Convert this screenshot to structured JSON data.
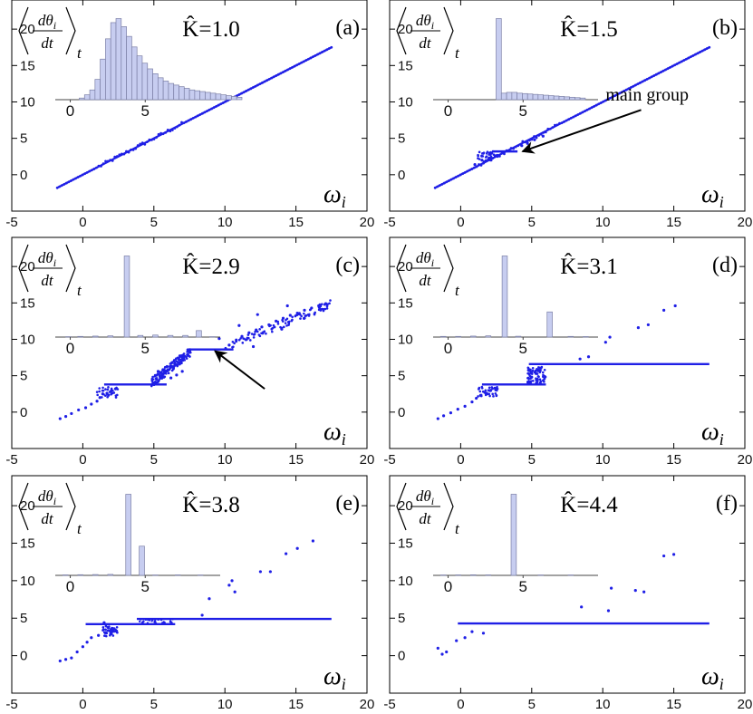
{
  "figure": {
    "y_label": {
      "numerator": "dθ",
      "numerator_sub": "i",
      "denominator": "dt",
      "subscript": "t"
    },
    "x_label": {
      "symbol": "ω",
      "sub": "i"
    }
  },
  "chart_data": [
    {
      "type": "scatter",
      "panel": "(a)",
      "k_label": "K̂=1.0",
      "xlim": [
        -5,
        20
      ],
      "ylim": [
        -5,
        24
      ],
      "xticks": [
        -5,
        0,
        5,
        10,
        15,
        20
      ],
      "yticks": [
        0,
        5,
        10,
        15,
        20
      ],
      "main_line": {
        "x_start": -1.8,
        "x_end": 17.5,
        "equation": "y = x"
      },
      "plateaus": [],
      "scatter_points": [],
      "inset": {
        "type": "bar",
        "xticks": [
          0,
          5
        ],
        "xlim": [
          -1,
          10
        ],
        "bins_start": 0.6,
        "bin_width": 0.35,
        "values": [
          0.2,
          0.6,
          1.2,
          2.5,
          5,
          7.5,
          9.5,
          10,
          9,
          7.8,
          6.5,
          5.4,
          4.5,
          3.8,
          3.2,
          2.7,
          2.3,
          2,
          1.8,
          1.6,
          1.4,
          1.2,
          1.1,
          1,
          0.9,
          0.8,
          0.7,
          0.6,
          0.5,
          0.4,
          0.3
        ],
        "ymax": 10.5
      }
    },
    {
      "type": "scatter",
      "panel": "(b)",
      "k_label": "K̂=1.5",
      "xlim": [
        -5,
        20
      ],
      "ylim": [
        -5,
        24
      ],
      "xticks": [
        -5,
        0,
        5,
        10,
        15,
        20
      ],
      "yticks": [
        0,
        5,
        10,
        15,
        20
      ],
      "main_line": {
        "x_start": -1.8,
        "x_end": 17.5,
        "equation": "y = x"
      },
      "plateaus": [
        {
          "x_start": 2.2,
          "x_end": 4.0,
          "y": 3.2
        }
      ],
      "scatter_points": [
        [
          1.0,
          1.4
        ],
        [
          1.5,
          2.0
        ],
        [
          2.0,
          2.3
        ],
        [
          4.3,
          4.0
        ],
        [
          4.7,
          4.3
        ],
        [
          5.2,
          4.8
        ],
        [
          5.8,
          5.3
        ]
      ],
      "annotation": {
        "text": "main group",
        "text_x": 10.2,
        "text_y": 10.2,
        "arrow_to": [
          4.1,
          3.2
        ]
      },
      "inset": {
        "type": "bar",
        "xticks": [
          0,
          5
        ],
        "xlim": [
          -1,
          10
        ],
        "bins_start": 3.2,
        "bin_width": 0.35,
        "values": [
          10,
          0.8,
          0.9,
          0.9,
          0.8,
          0.75,
          0.7,
          0.65,
          0.6,
          0.55,
          0.5,
          0.45,
          0.4,
          0.35,
          0.3,
          0.25,
          0.2
        ],
        "ymax": 10.5
      }
    },
    {
      "type": "scatter",
      "panel": "(c)",
      "k_label": "K̂=2.9",
      "xlim": [
        -5,
        20
      ],
      "ylim": [
        -5,
        24
      ],
      "xticks": [
        -5,
        0,
        5,
        10,
        15,
        20
      ],
      "yticks": [
        0,
        5,
        10,
        15,
        20
      ],
      "main_line": null,
      "plateaus": [
        {
          "x_start": 1.5,
          "x_end": 5.9,
          "y": 3.8
        },
        {
          "x_start": 7.5,
          "x_end": 10.6,
          "y": 8.6
        }
      ],
      "scatter_points": [
        [
          -1.6,
          -0.9
        ],
        [
          -1.2,
          -0.6
        ],
        [
          -0.8,
          -0.2
        ],
        [
          -0.3,
          0.3
        ],
        [
          0.2,
          0.6
        ],
        [
          0.6,
          1.1
        ],
        [
          1.0,
          1.5
        ],
        [
          1.2,
          2.0
        ],
        [
          1.4,
          2.5
        ],
        [
          1.7,
          2.6
        ],
        [
          2.0,
          2.9
        ],
        [
          2.3,
          3.2
        ],
        [
          5.2,
          4.5
        ],
        [
          5.5,
          5.0
        ],
        [
          5.8,
          5.4
        ],
        [
          6.0,
          5.8
        ],
        [
          6.3,
          6.2
        ],
        [
          6.6,
          6.5
        ],
        [
          6.9,
          6.9
        ],
        [
          7.1,
          7.4
        ],
        [
          7.4,
          7.8
        ],
        [
          6.2,
          4.7
        ],
        [
          6.6,
          5.1
        ],
        [
          7.0,
          5.6
        ],
        [
          5.3,
          5.6
        ],
        [
          10.3,
          9.2
        ],
        [
          10.8,
          9.9
        ],
        [
          11.2,
          10.4
        ],
        [
          11.7,
          10.9
        ],
        [
          12.2,
          11.3
        ],
        [
          12.6,
          11.7
        ],
        [
          13.1,
          12.0
        ],
        [
          13.6,
          12.5
        ],
        [
          14.1,
          12.9
        ],
        [
          14.6,
          13.3
        ],
        [
          15.1,
          13.6
        ],
        [
          15.6,
          14.0
        ],
        [
          16.1,
          14.3
        ],
        [
          16.6,
          14.6
        ],
        [
          17.1,
          14.9
        ],
        [
          9.6,
          10.1
        ],
        [
          12.3,
          13.4
        ],
        [
          14.4,
          14.6
        ],
        [
          11.0,
          11.9
        ],
        [
          12.0,
          9.0
        ],
        [
          14.0,
          11.4
        ]
      ],
      "annotation": {
        "text": "",
        "arrow_from": [
          12.8,
          3.2
        ],
        "arrow_to": [
          9.3,
          8.4
        ]
      },
      "inset": {
        "type": "bar",
        "xticks": [
          0,
          5
        ],
        "xlim": [
          -1,
          10
        ],
        "bins": [
          [
            3.6,
            0.35,
            10
          ],
          [
            8.4,
            0.35,
            0.8
          ],
          [
            -0.3,
            0.35,
            0.05
          ],
          [
            0.5,
            0.35,
            0.08
          ],
          [
            1.5,
            0.35,
            0.12
          ],
          [
            2.5,
            0.35,
            0.15
          ],
          [
            4.5,
            0.35,
            0.2
          ],
          [
            5.5,
            0.35,
            0.25
          ],
          [
            6.5,
            0.35,
            0.2
          ],
          [
            7.5,
            0.35,
            0.2
          ],
          [
            9.3,
            0.35,
            0.05
          ]
        ],
        "ymax": 10.5
      }
    },
    {
      "type": "scatter",
      "panel": "(d)",
      "k_label": "K̂=3.1",
      "xlim": [
        -5,
        20
      ],
      "ylim": [
        -5,
        24
      ],
      "xticks": [
        -5,
        0,
        5,
        10,
        15,
        20
      ],
      "yticks": [
        0,
        5,
        10,
        15,
        20
      ],
      "main_line": null,
      "plateaus": [
        {
          "x_start": 1.5,
          "x_end": 6.0,
          "y": 3.8
        },
        {
          "x_start": 4.8,
          "x_end": 17.5,
          "y": 6.6
        }
      ],
      "scatter_points": [
        [
          -1.6,
          -0.9
        ],
        [
          -1.2,
          -0.5
        ],
        [
          -0.7,
          -0.1
        ],
        [
          -0.2,
          0.4
        ],
        [
          0.3,
          0.8
        ],
        [
          0.8,
          1.4
        ],
        [
          1.1,
          1.9
        ],
        [
          1.4,
          2.3
        ],
        [
          1.7,
          2.7
        ],
        [
          2.1,
          3.0
        ],
        [
          2.4,
          3.3
        ],
        [
          4.8,
          4.2
        ],
        [
          5.0,
          4.8
        ],
        [
          5.3,
          5.3
        ],
        [
          5.6,
          5.7
        ],
        [
          5.9,
          4.9
        ],
        [
          4.9,
          5.8
        ],
        [
          5.4,
          4.4
        ],
        [
          8.4,
          7.3
        ],
        [
          9.0,
          7.6
        ],
        [
          10.2,
          9.6
        ],
        [
          10.5,
          10.3
        ],
        [
          12.5,
          11.6
        ],
        [
          13.2,
          12.0
        ],
        [
          14.3,
          14.0
        ],
        [
          15.1,
          14.6
        ]
      ],
      "inset": {
        "type": "bar",
        "xticks": [
          0,
          5
        ],
        "xlim": [
          -1,
          10
        ],
        "bins": [
          [
            3.6,
            0.35,
            10
          ],
          [
            6.6,
            0.35,
            3.1
          ],
          [
            -0.5,
            0.35,
            0.08
          ],
          [
            0.5,
            0.35,
            0.08
          ],
          [
            1.5,
            0.35,
            0.12
          ],
          [
            2.5,
            0.35,
            0.15
          ],
          [
            4.5,
            0.35,
            0.1
          ],
          [
            8.0,
            0.35,
            0.08
          ],
          [
            9.0,
            0.35,
            0.06
          ]
        ],
        "ymax": 10.5
      }
    },
    {
      "type": "scatter",
      "panel": "(e)",
      "k_label": "K̂=3.8",
      "xlim": [
        -5,
        20
      ],
      "ylim": [
        -5,
        24
      ],
      "xticks": [
        -5,
        0,
        5,
        10,
        15,
        20
      ],
      "yticks": [
        0,
        5,
        10,
        15,
        20
      ],
      "main_line": null,
      "plateaus": [
        {
          "x_start": 0.2,
          "x_end": 6.5,
          "y": 4.2
        },
        {
          "x_start": 3.8,
          "x_end": 17.5,
          "y": 4.9
        }
      ],
      "scatter_points": [
        [
          -1.6,
          -0.7
        ],
        [
          -1.2,
          -0.5
        ],
        [
          -0.8,
          -0.3
        ],
        [
          -0.4,
          0.5
        ],
        [
          0.0,
          1.2
        ],
        [
          0.3,
          1.8
        ],
        [
          0.6,
          2.4
        ],
        [
          1.1,
          2.7
        ],
        [
          1.6,
          3.0
        ],
        [
          1.9,
          3.3
        ],
        [
          2.2,
          3.6
        ],
        [
          1.5,
          4.4
        ],
        [
          1.8,
          3.7
        ],
        [
          8.4,
          5.4
        ],
        [
          8.9,
          7.6
        ],
        [
          10.3,
          9.4
        ],
        [
          10.5,
          10.0
        ],
        [
          10.7,
          8.5
        ],
        [
          12.5,
          11.2
        ],
        [
          13.2,
          11.2
        ],
        [
          14.3,
          13.6
        ],
        [
          15.1,
          14.3
        ],
        [
          16.2,
          15.3
        ]
      ],
      "inset": {
        "type": "bar",
        "xticks": [
          0,
          5
        ],
        "xlim": [
          -1,
          10
        ],
        "bins": [
          [
            3.7,
            0.35,
            10
          ],
          [
            4.6,
            0.35,
            3.6
          ],
          [
            -0.5,
            0.35,
            0.06
          ],
          [
            0.5,
            0.35,
            0.08
          ],
          [
            1.5,
            0.35,
            0.1
          ],
          [
            2.5,
            0.35,
            0.12
          ],
          [
            5.5,
            0.35,
            0.05
          ],
          [
            7.0,
            0.35,
            0.06
          ],
          [
            8.5,
            0.35,
            0.05
          ]
        ],
        "ymax": 10.5
      }
    },
    {
      "type": "scatter",
      "panel": "(f)",
      "k_label": "K̂=4.4",
      "xlim": [
        -5,
        20
      ],
      "ylim": [
        -5,
        24
      ],
      "xticks": [
        -5,
        0,
        5,
        10,
        15,
        20
      ],
      "yticks": [
        0,
        5,
        10,
        15,
        20
      ],
      "main_line": null,
      "plateaus": [
        {
          "x_start": -0.2,
          "x_end": 17.5,
          "y": 4.3
        }
      ],
      "scatter_points": [
        [
          -1.6,
          1.0
        ],
        [
          -1.3,
          0.2
        ],
        [
          -1.0,
          0.5
        ],
        [
          -0.3,
          2.0
        ],
        [
          0.3,
          2.4
        ],
        [
          0.8,
          3.2
        ],
        [
          1.6,
          3.0
        ],
        [
          8.5,
          6.5
        ],
        [
          10.4,
          6.0
        ],
        [
          10.6,
          9.0
        ],
        [
          12.3,
          8.7
        ],
        [
          12.9,
          8.5
        ],
        [
          14.3,
          13.3
        ],
        [
          15.0,
          13.5
        ]
      ],
      "inset": {
        "type": "bar",
        "xticks": [
          0,
          5
        ],
        "xlim": [
          -1,
          10
        ],
        "bins": [
          [
            4.2,
            0.35,
            10
          ],
          [
            -0.5,
            0.35,
            0.05
          ],
          [
            0.5,
            0.35,
            0.06
          ],
          [
            1.5,
            0.35,
            0.07
          ],
          [
            2.5,
            0.35,
            0.06
          ],
          [
            6.0,
            0.35,
            0.05
          ],
          [
            8.0,
            0.35,
            0.05
          ]
        ],
        "ymax": 10.5
      }
    }
  ]
}
